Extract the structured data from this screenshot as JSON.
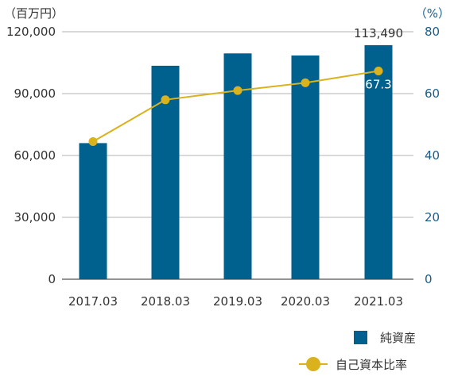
{
  "chart_data": {
    "type": "bar",
    "categories": [
      "2017.03",
      "2018.03",
      "2019.03",
      "2020.03",
      "2021.03"
    ],
    "series": [
      {
        "name": "純資産",
        "type": "bar",
        "axis": "left",
        "color": "#00618f",
        "values": [
          66000,
          103500,
          109500,
          108500,
          113490
        ]
      },
      {
        "name": "自己資本比率",
        "type": "line",
        "axis": "right",
        "color": "#d9b21e",
        "values": [
          44.5,
          58.0,
          61.0,
          63.5,
          67.3
        ]
      }
    ],
    "ylabel_left": "（百万円）",
    "ylabel_right": "（%）",
    "ylim_left": [
      0,
      120000
    ],
    "ylim_right": [
      0,
      80
    ],
    "yticks_left": [
      "0",
      "30,000",
      "60,000",
      "90,000",
      "120,000"
    ],
    "yticks_right": [
      "0",
      "20",
      "40",
      "60",
      "80"
    ],
    "data_labels": [
      {
        "series": "純資産",
        "category": "2021.03",
        "text": "113,490"
      },
      {
        "series": "自己資本比率",
        "category": "2021.03",
        "text": "67.3"
      }
    ],
    "grid": true,
    "legend_position": "bottom-right"
  }
}
